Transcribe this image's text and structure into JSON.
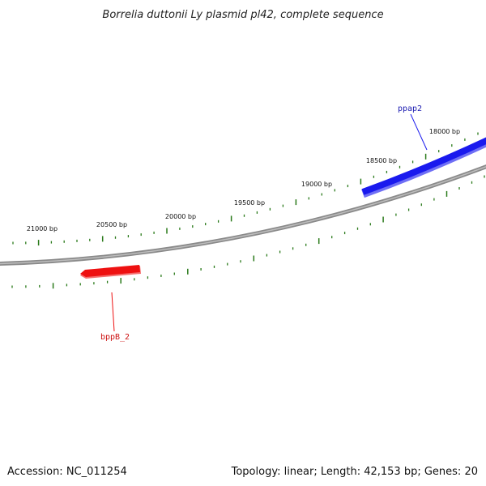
{
  "title": "Borrelia duttonii Ly plasmid pl42, complete sequence",
  "footer": {
    "accession": "Accession: NC_011254",
    "summary": "Topology: linear; Length: 42,153 bp; Genes: 20"
  },
  "tick_labels": [
    "21000 bp",
    "20500 bp",
    "20000 bp",
    "19500 bp",
    "19000 bp",
    "18500 bp",
    "18000 bp"
  ],
  "genes": [
    {
      "name": "ppap2",
      "strand": "+",
      "color": "#1a1aee",
      "label_color": "#1a1ab0"
    },
    {
      "name": "bppB_2",
      "strand": "-",
      "color": "#ee1111",
      "label_color": "#cc1111"
    }
  ],
  "colors": {
    "backbone": "#8a8a8a",
    "ticks": "#2a7a1a"
  }
}
